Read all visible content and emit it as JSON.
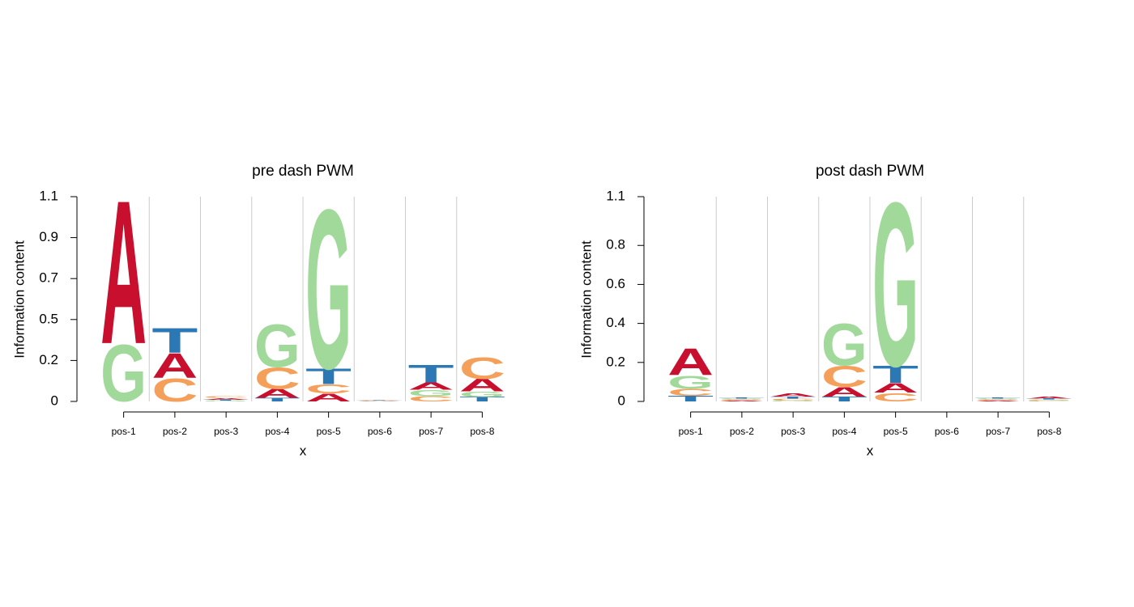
{
  "chart_data": [
    {
      "type": "logo",
      "title": "pre dash PWM",
      "x_label": "x",
      "y_label": "Information content",
      "categories": [
        "pos-1",
        "pos-2",
        "pos-3",
        "pos-4",
        "pos-5",
        "pos-6",
        "pos-7",
        "pos-8"
      ],
      "series": [
        {
          "name": "A",
          "color": "#c8102e",
          "values": [
            0.81,
            0.14,
            0.01,
            0.05,
            0.045,
            0.002,
            0.04,
            0.07
          ]
        },
        {
          "name": "C",
          "color": "#f5a05a",
          "values": [
            0.001,
            0.13,
            0.01,
            0.12,
            0.05,
            0.002,
            0.03,
            0.12
          ]
        },
        {
          "name": "G",
          "color": "#a1d99b",
          "values": [
            0.32,
            0.001,
            0.005,
            0.24,
            0.9,
            0.002,
            0.035,
            0.03
          ]
        },
        {
          "name": "T",
          "color": "#2b78b5",
          "values": [
            0.001,
            0.14,
            0.005,
            0.02,
            0.09,
            0.002,
            0.1,
            0.025
          ]
        }
      ],
      "ylim": [
        0,
        1.13
      ],
      "yticks": [
        0,
        {
          "value": 0.226,
          "label": "0.2"
        },
        {
          "value": 0.452,
          "label": "0.5"
        },
        {
          "value": 0.678,
          "label": "0.7"
        },
        {
          "value": 0.904,
          "label": "0.9"
        },
        {
          "value": 1.13,
          "label": "1.1"
        }
      ],
      "grid": true
    },
    {
      "type": "logo",
      "title": "post dash PWM",
      "x_label": "x",
      "y_label": "Information content",
      "categories": [
        "pos-1",
        "pos-2",
        "pos-3",
        "pos-4",
        "pos-5",
        "pos-6",
        "pos-7",
        "pos-8"
      ],
      "series": [
        {
          "name": "A",
          "color": "#c8102e",
          "values": [
            0.14,
            0.005,
            0.015,
            0.05,
            0.05,
            0,
            0.005,
            0.01
          ]
        },
        {
          "name": "C",
          "color": "#f5a05a",
          "values": [
            0.035,
            0.005,
            0.01,
            0.11,
            0.045,
            0,
            0.005,
            0.005
          ]
        },
        {
          "name": "G",
          "color": "#a1d99b",
          "values": [
            0.07,
            0.005,
            0.005,
            0.22,
            0.86,
            0,
            0.005,
            0.005
          ]
        },
        {
          "name": "T",
          "color": "#2b78b5",
          "values": [
            0.03,
            0.005,
            0.01,
            0.025,
            0.09,
            0,
            0.005,
            0.005
          ]
        }
      ],
      "ylim": [
        0,
        1.05
      ],
      "yticks": [
        0,
        0.2,
        0.4,
        0.6,
        0.8,
        {
          "value": 1.05,
          "label": "1.1"
        }
      ],
      "grid": true
    }
  ]
}
